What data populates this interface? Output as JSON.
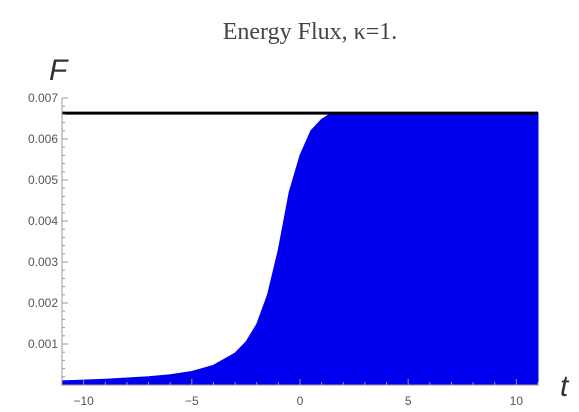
{
  "chart_data": {
    "type": "area",
    "title": "Energy Flux, κ=1.",
    "xlabel": "t",
    "ylabel": "F",
    "xlim": [
      -11,
      11
    ],
    "ylim": [
      0,
      0.007
    ],
    "x_ticks": [
      -10,
      -5,
      0,
      5,
      10
    ],
    "x_tick_labels": [
      "−10",
      "−5",
      "0",
      "5",
      "10"
    ],
    "y_ticks": [
      0.001,
      0.002,
      0.003,
      0.004,
      0.005,
      0.006,
      0.007
    ],
    "y_tick_labels": [
      "0.001",
      "0.002",
      "0.003",
      "0.004",
      "0.005",
      "0.006",
      "0.007"
    ],
    "grid": false,
    "series": [
      {
        "fill_color": "#0000ee",
        "x": [
          -11,
          -10,
          -9,
          -8,
          -7,
          -6,
          -5,
          -4,
          -3,
          -2.5,
          -2,
          -1.5,
          -1,
          -0.5,
          0,
          0.5,
          1,
          1.3,
          1.6,
          2,
          3,
          5,
          8,
          11
        ],
        "y": [
          0.0001,
          0.00012,
          0.00014,
          0.00017,
          0.0002,
          0.00025,
          0.00033,
          0.00048,
          0.00078,
          0.00105,
          0.00148,
          0.0022,
          0.0033,
          0.0047,
          0.0056,
          0.0062,
          0.00648,
          0.00658,
          0.00663,
          0.00663,
          0.00663,
          0.00663,
          0.00663,
          0.00663
        ]
      }
    ],
    "reference_line": {
      "y": 0.00663,
      "color": "#000000"
    }
  }
}
